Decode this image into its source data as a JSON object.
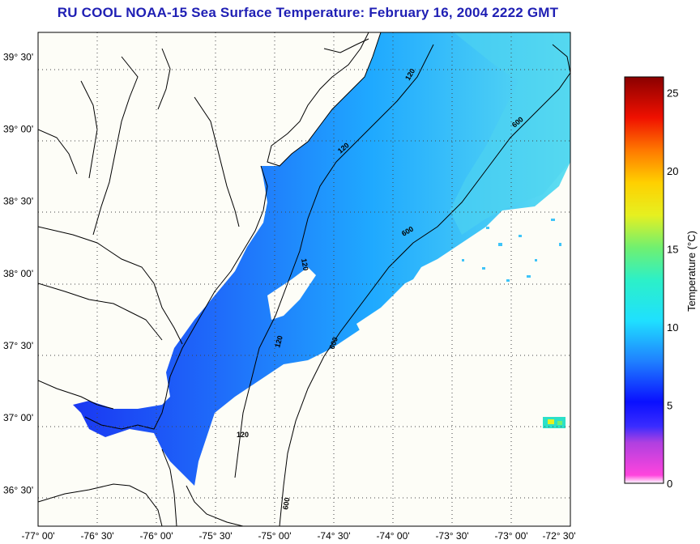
{
  "title": "RU COOL  NOAA-15  Sea Surface Temperature:  February 16, 2004 2222 GMT",
  "chart_data": {
    "type": "heatmap",
    "title": "RU COOL  NOAA-15  Sea Surface Temperature:  February 16, 2004 2222 GMT",
    "xlabel": "",
    "ylabel": "",
    "xlim": [
      -77.0,
      -72.5
    ],
    "ylim": [
      36.25,
      39.67
    ],
    "x_ticks": [
      "-77° 00'",
      "-76° 30'",
      "-76° 00'",
      "-75° 30'",
      "-75° 00'",
      "-74° 30'",
      "-74° 00'",
      "-73° 30'",
      "-73° 00'",
      "-72° 30'"
    ],
    "x_tick_values": [
      -77.0,
      -76.5,
      -76.0,
      -75.5,
      -75.0,
      -74.5,
      -74.0,
      -73.5,
      -73.0,
      -72.5
    ],
    "y_ticks": [
      "39° 30'",
      "39° 00'",
      "38° 30'",
      "38° 00'",
      "37° 30'",
      "37° 00'",
      "36° 30'"
    ],
    "y_tick_values": [
      39.5,
      39.0,
      38.5,
      38.0,
      37.5,
      37.0,
      36.5
    ],
    "grid": true,
    "contour_labels": [
      "120",
      "120",
      "120",
      "120",
      "600",
      "600",
      "600",
      "600",
      "120"
    ],
    "colorbar": {
      "label": "Temperature (°C)",
      "range": [
        0,
        26
      ],
      "ticks": [
        "25",
        "20",
        "15",
        "10",
        "5",
        "0"
      ],
      "tick_values": [
        25,
        20,
        15,
        10,
        5,
        0
      ]
    }
  },
  "colors": {
    "title": "#1f1fb4",
    "land": "#fdfdf7",
    "cold_water": "#0a2cf5",
    "mid_water": "#1fa6ff",
    "warm_water": "#7fe6e6"
  }
}
